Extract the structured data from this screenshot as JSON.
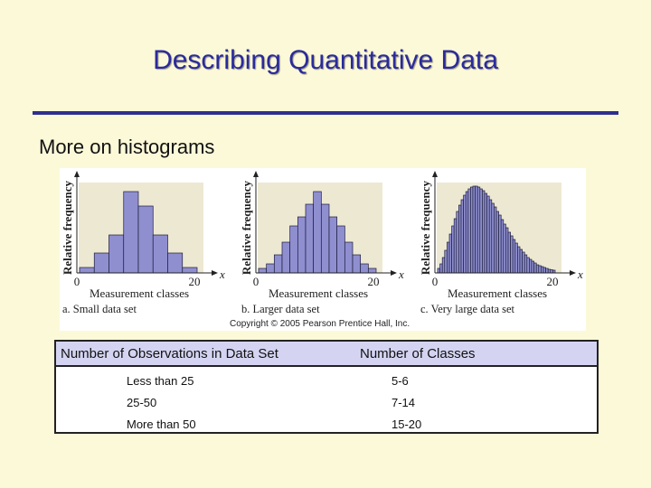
{
  "slide": {
    "title": "Describing Quantitative Data",
    "subtitle": "More on histograms"
  },
  "figure": {
    "panels": [
      {
        "ylabel": "Relative frequency",
        "x_axis_var": "x",
        "tick_start": "0",
        "tick_end": "20",
        "xlabel": "Measurement classes",
        "caption": "a. Small data set"
      },
      {
        "ylabel": "Relative frequency",
        "x_axis_var": "x",
        "tick_start": "0",
        "tick_end": "20",
        "xlabel": "Measurement classes",
        "caption": "b. Larger data set"
      },
      {
        "ylabel": "Relative frequency",
        "x_axis_var": "x",
        "tick_start": "0",
        "tick_end": "20",
        "xlabel": "Measurement classes",
        "caption": "c. Very large data set"
      }
    ],
    "copyright": "Copyright © 2005 Pearson Prentice Hall, Inc.",
    "bar_fill": "#8f8fd0",
    "bar_stroke": "#1c1c3c",
    "histograms": [
      {
        "values": [
          0.06,
          0.22,
          0.42,
          0.9,
          0.74,
          0.42,
          0.22,
          0.06
        ]
      },
      {
        "values": [
          0.05,
          0.1,
          0.2,
          0.34,
          0.52,
          0.62,
          0.76,
          0.9,
          0.76,
          0.62,
          0.52,
          0.34,
          0.2,
          0.1,
          0.05
        ]
      },
      {
        "values": [
          0.05,
          0.1,
          0.17,
          0.25,
          0.34,
          0.43,
          0.52,
          0.6,
          0.68,
          0.75,
          0.81,
          0.86,
          0.9,
          0.93,
          0.95,
          0.96,
          0.96,
          0.95,
          0.93,
          0.91,
          0.88,
          0.85,
          0.81,
          0.77,
          0.73,
          0.68,
          0.64,
          0.59,
          0.54,
          0.5,
          0.45,
          0.41,
          0.37,
          0.33,
          0.29,
          0.26,
          0.23,
          0.2,
          0.17,
          0.15,
          0.13,
          0.11,
          0.09,
          0.08,
          0.07,
          0.06,
          0.05,
          0.04,
          0.035,
          0.03
        ]
      }
    ]
  },
  "table": {
    "headers": [
      "Number of Observations in Data Set",
      "Number of Classes"
    ],
    "rows": [
      [
        "Less than 25",
        "5-6"
      ],
      [
        "25-50",
        "7-14"
      ],
      [
        "More than 50",
        "15-20"
      ]
    ]
  }
}
